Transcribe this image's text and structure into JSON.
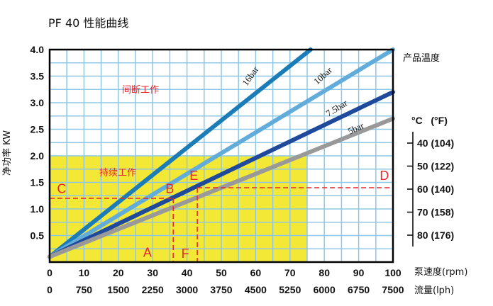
{
  "chart_data": {
    "type": "line",
    "title": "PF 40 性能曲线",
    "ylabel": "净功率 KW",
    "ylim": [
      0,
      4
    ],
    "xlim": [
      0,
      100
    ],
    "y_ticks": [
      "4.0",
      "3.5",
      "3.0",
      "2.5",
      "2.0",
      "1.5",
      "1.0",
      "0.5"
    ],
    "x_ticks_speed": [
      "0",
      "10",
      "20",
      "30",
      "40",
      "50",
      "60",
      "70",
      "80",
      "90",
      "100"
    ],
    "x_ticks_flow": [
      "0",
      "750",
      "1500",
      "2250",
      "3000",
      "3750",
      "4500",
      "5250",
      "6000",
      "6750",
      "7500"
    ],
    "xlabel_speed": "泵速度(rpm)",
    "xlabel_flow": "流量(lph)",
    "grid": true,
    "series": [
      {
        "name": "16bar",
        "color": "#1b7cb8",
        "x": [
          0,
          76
        ],
        "y": [
          0.1,
          4.0
        ]
      },
      {
        "name": "10bar",
        "color": "#62acdb",
        "x": [
          0,
          100
        ],
        "y": [
          0.1,
          4.0
        ]
      },
      {
        "name": "7.5bar",
        "color": "#1f4a9c",
        "x": [
          0,
          100
        ],
        "y": [
          0.1,
          3.2
        ]
      },
      {
        "name": "5bar",
        "color": "#999999",
        "x": [
          0,
          100
        ],
        "y": [
          0.1,
          2.7
        ]
      }
    ],
    "regions": [
      {
        "label": "间断工作",
        "xrange": [
          0,
          100
        ],
        "yrange": [
          0,
          4
        ]
      },
      {
        "label": "持续工作",
        "xrange": [
          0,
          75
        ],
        "yrange": [
          0,
          2
        ],
        "color": "#f2e835"
      }
    ],
    "points": [
      {
        "label": "A",
        "x": 28.5,
        "y": 0.1
      },
      {
        "label": "B",
        "x": 35,
        "y": 1.3
      },
      {
        "label": "C",
        "x": 3.5,
        "y": 1.3
      },
      {
        "label": "D",
        "x": 97.5,
        "y": 1.55
      },
      {
        "label": "E",
        "x": 42,
        "y": 1.55
      },
      {
        "label": "F",
        "x": 39.5,
        "y": 0.08
      }
    ],
    "dashed_lines": [
      {
        "from": [
          0,
          1.2
        ],
        "to": [
          36,
          1.2
        ]
      },
      {
        "from": [
          36,
          1.2
        ],
        "to": [
          36,
          0
        ]
      },
      {
        "from": [
          43,
          1.4
        ],
        "to": [
          99,
          1.4
        ]
      },
      {
        "from": [
          43,
          1.4
        ],
        "to": [
          43,
          0
        ]
      }
    ],
    "temperature_scale": {
      "title": "产品温度",
      "header": "°C   (°F)",
      "entries": [
        "40 (104)",
        "50 (122)",
        "60 (140)",
        "70 (158)",
        "80 (176)"
      ]
    }
  }
}
